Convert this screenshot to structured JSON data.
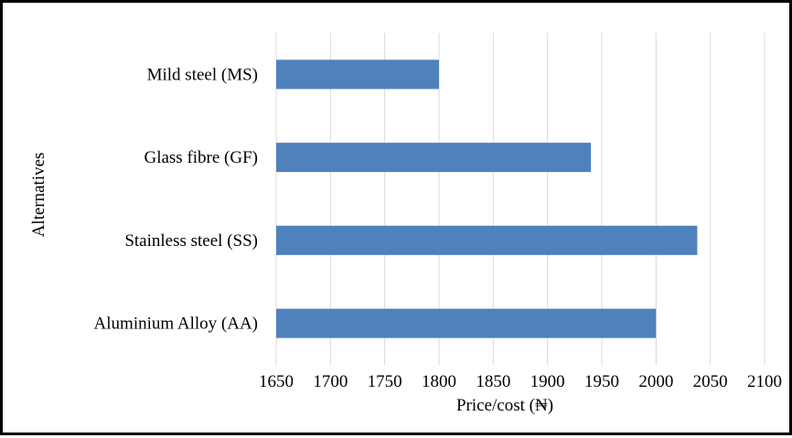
{
  "chart_data": {
    "type": "bar",
    "orientation": "horizontal",
    "categories": [
      "Mild steel (MS)",
      "Glass fibre (GF)",
      "Stainless steel (SS)",
      "Aluminium Alloy (AA)"
    ],
    "values": [
      1800,
      1940,
      2038,
      2000
    ],
    "xlabel": "Price/cost (₦)",
    "ylabel": "Alternatives",
    "xlim": [
      1650,
      2100
    ],
    "xticks": [
      "1650",
      "1700",
      "1750",
      "1800",
      "1850",
      "1900",
      "1950",
      "2000",
      "2050",
      "2100"
    ],
    "grid": "vertical",
    "legend": "none",
    "bar_color": "#4f81bd"
  }
}
